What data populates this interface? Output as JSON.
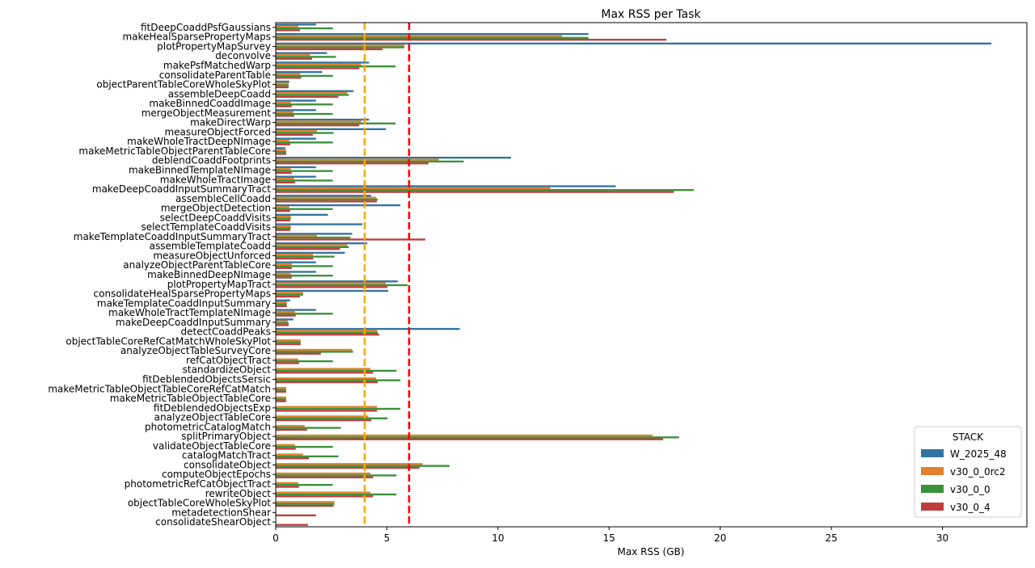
{
  "chart_data": {
    "type": "bar",
    "orientation": "horizontal",
    "title": "Max RSS per Task",
    "xlabel": "Max RSS (GB)",
    "ylabel": "",
    "xlim": [
      0,
      33.8
    ],
    "xticks": [
      0,
      5,
      10,
      15,
      20,
      25,
      30
    ],
    "grid": false,
    "legend": {
      "title": "STACK",
      "placement": "lower-right"
    },
    "reference_lines": [
      {
        "x": 4,
        "color": "#ffa500",
        "style": "dashed"
      },
      {
        "x": 6,
        "color": "#ff0000",
        "style": "dashed"
      }
    ],
    "categories": [
      "fitDeepCoaddPsfGaussians",
      "makeHealSparsePropertyMaps",
      "plotPropertyMapSurvey",
      "deconvolve",
      "makePsfMatchedWarp",
      "consolidateParentTable",
      "objectParentTableCoreWholeSkyPlot",
      "assembleDeepCoadd",
      "makeBinnedCoaddImage",
      "mergeObjectMeasurement",
      "makeDirectWarp",
      "measureObjectForced",
      "makeWholeTractDeepNImage",
      "makeMetricTableObjectParentTableCore",
      "deblendCoaddFootprints",
      "makeBinnedTemplateNImage",
      "makeWholeTractImage",
      "makeDeepCoaddInputSummaryTract",
      "assembleCellCoadd",
      "mergeObjectDetection",
      "selectDeepCoaddVisits",
      "selectTemplateCoaddVisits",
      "makeTemplateCoaddInputSummaryTract",
      "assembleTemplateCoadd",
      "measureObjectUnforced",
      "analyzeObjectParentTableCore",
      "makeBinnedDeepNImage",
      "plotPropertyMapTract",
      "consolidateHealSparsePropertyMaps",
      "makeTemplateCoaddInputSummary",
      "makeWholeTractTemplateNImage",
      "makeDeepCoaddInputSummary",
      "detectCoaddPeaks",
      "objectTableCoreRefCatMatchWholeSkyPlot",
      "analyzeObjectTableSurveyCore",
      "refCatObjectTract",
      "standardizeObject",
      "fitDeblendedObjectsSersic",
      "makeMetricTableObjectTableCoreRefCatMatch",
      "makeMetricTableObjectTableCore",
      "fitDeblendedObjectsExp",
      "analyzeObjectTableCore",
      "photometricCatalogMatch",
      "splitPrimaryObject",
      "validateObjectTableCore",
      "catalogMatchTract",
      "consolidateObject",
      "computeObjectEpochs",
      "photometricRefCatObjectTract",
      "rewriteObject",
      "objectTableCoreWholeSkyPlot",
      "metadetectionShear",
      "consolidateShearObject"
    ],
    "series": [
      {
        "name": "W_2025_48",
        "color": "#3274a1",
        "values": [
          1.81,
          14.07,
          32.2,
          2.31,
          4.2,
          2.09,
          0.61,
          3.5,
          1.81,
          1.81,
          4.2,
          4.95,
          1.81,
          0.43,
          10.59,
          1.81,
          1.81,
          15.3,
          4.3,
          5.61,
          2.35,
          3.9,
          3.44,
          4.12,
          3.11,
          1.81,
          1.81,
          5.49,
          5.06,
          0.65,
          1.81,
          0.79,
          8.28,
          null,
          null,
          null,
          null,
          null,
          null,
          null,
          null,
          null,
          null,
          null,
          null,
          null,
          null,
          null,
          null,
          null,
          null,
          null,
          null
        ]
      },
      {
        "name": "v30_0_0rc2",
        "color": "#e1812c",
        "values": [
          1.01,
          12.88,
          5.79,
          1.55,
          3.84,
          1.09,
          0.58,
          3.22,
          0.68,
          0.79,
          3.84,
          1.85,
          0.61,
          0.47,
          7.34,
          0.68,
          0.83,
          12.36,
          4.52,
          0.61,
          0.68,
          0.68,
          1.85,
          3.22,
          1.67,
          0.72,
          0.68,
          4.95,
          1.23,
          0.5,
          0.87,
          0.54,
          4.56,
          1.12,
          3.44,
          1.01,
          4.26,
          4.52,
          0.47,
          0.47,
          4.56,
          4.16,
          1.3,
          16.96,
          0.87,
          1.23,
          6.61,
          4.26,
          1.01,
          4.26,
          2.64,
          null,
          null
        ]
      },
      {
        "name": "v30_0_0",
        "color": "#3a923a",
        "values": [
          2.57,
          14.07,
          5.79,
          2.71,
          5.39,
          2.57,
          0.58,
          3.29,
          2.57,
          2.57,
          5.39,
          2.6,
          2.57,
          0.47,
          8.46,
          2.57,
          2.57,
          18.81,
          4.59,
          2.57,
          0.68,
          0.68,
          3.36,
          3.29,
          2.64,
          2.57,
          2.57,
          5.93,
          1.23,
          0.5,
          2.57,
          0.58,
          4.59,
          1.12,
          3.48,
          2.57,
          5.43,
          5.61,
          0.47,
          0.47,
          5.61,
          5.03,
          2.93,
          18.15,
          2.57,
          2.82,
          7.82,
          5.43,
          2.57,
          5.43,
          2.64,
          null,
          null
        ]
      },
      {
        "name": "v30_0_4",
        "color": "#c03d3e",
        "values": [
          1.09,
          17.58,
          4.81,
          1.63,
          3.76,
          1.15,
          0.58,
          2.82,
          0.72,
          0.83,
          3.76,
          1.67,
          0.65,
          0.47,
          6.87,
          0.72,
          0.87,
          17.91,
          4.55,
          0.65,
          0.65,
          0.65,
          6.73,
          2.89,
          1.69,
          0.72,
          0.72,
          5.03,
          1.09,
          0.5,
          0.9,
          0.58,
          4.66,
          1.12,
          2.03,
          1.05,
          4.38,
          4.59,
          0.47,
          0.47,
          4.56,
          4.3,
          1.41,
          17.43,
          0.9,
          1.49,
          6.47,
          4.38,
          1.05,
          4.38,
          2.6,
          1.81,
          1.45
        ]
      }
    ]
  }
}
